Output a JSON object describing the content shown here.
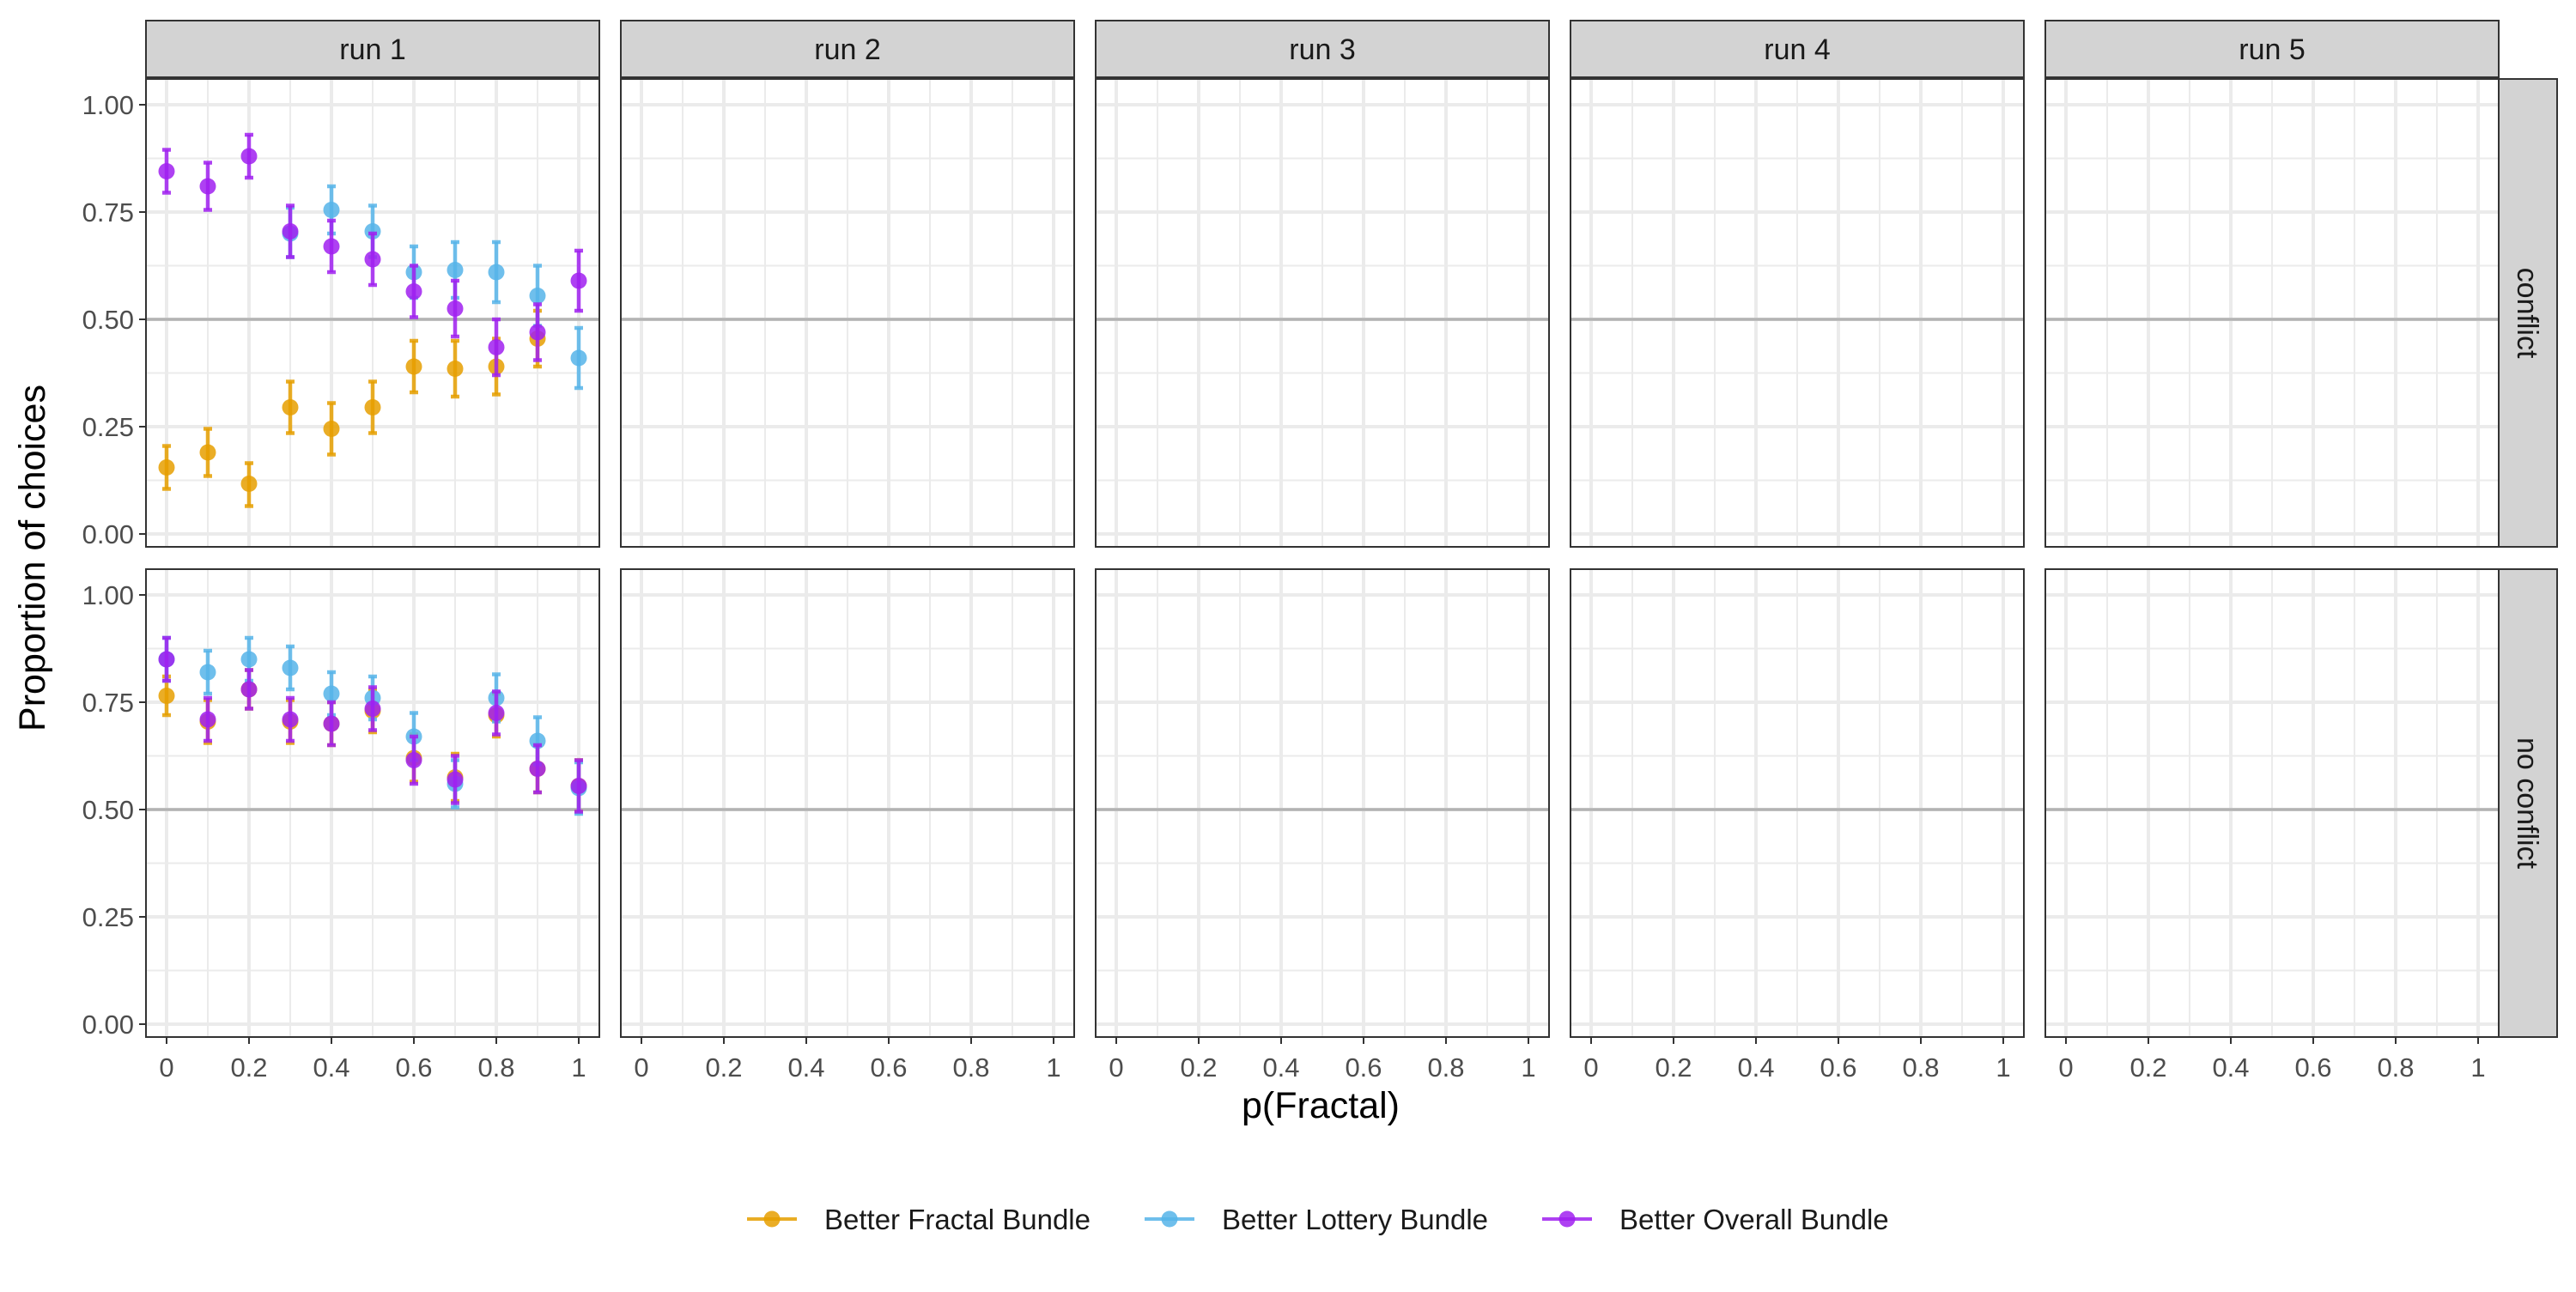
{
  "chart_data": {
    "type": "scatter",
    "style": "faceted points with error bars",
    "facet_columns": [
      "run 1",
      "run 2",
      "run 3",
      "run 4",
      "run 5"
    ],
    "facet_rows": [
      "conflict",
      "no conflict"
    ],
    "xlabel": "p(Fractal)",
    "ylabel": "Proportion of choices",
    "x_ticks": [
      "0",
      "0.2",
      "0.4",
      "0.6",
      "0.8",
      "1"
    ],
    "y_ticks": [
      "0.00",
      "0.25",
      "0.50",
      "0.75",
      "1.00"
    ],
    "xlim": [
      -0.05,
      1.05
    ],
    "ylim": [
      -0.03,
      1.06
    ],
    "reference_line": 0.5,
    "grid": true,
    "legend_position": "bottom",
    "colors": {
      "Better Fractal Bundle": "#E69F00",
      "Better Lottery Bundle": "#56B4E9",
      "Better Overall Bundle": "#A020F0",
      "panel_background": "#FFFFFF",
      "strip_background": "#D3D3D3",
      "grid": "#EBEBEB",
      "reference_line": "#B3B3B3"
    },
    "legend": [
      "Better Fractal Bundle",
      "Better Lottery Bundle",
      "Better Overall Bundle"
    ],
    "panels": [
      {
        "run": "run 1",
        "condition": "conflict",
        "series": [
          {
            "name": "Better Fractal Bundle",
            "x": [
              0,
              0.1,
              0.2,
              0.3,
              0.4,
              0.5,
              0.6,
              0.7,
              0.8,
              0.9
            ],
            "y": [
              0.155,
              0.19,
              0.117,
              0.295,
              0.245,
              0.295,
              0.39,
              0.385,
              0.39,
              0.455
            ],
            "err_low": [
              0.105,
              0.135,
              0.065,
              0.235,
              0.185,
              0.235,
              0.33,
              0.32,
              0.325,
              0.39
            ],
            "err_high": [
              0.205,
              0.245,
              0.165,
              0.355,
              0.305,
              0.355,
              0.45,
              0.45,
              0.455,
              0.52
            ]
          },
          {
            "name": "Better Lottery Bundle",
            "x": [
              0.3,
              0.4,
              0.5,
              0.6,
              0.7,
              0.8,
              0.9,
              1
            ],
            "y": [
              0.7,
              0.755,
              0.705,
              0.61,
              0.615,
              0.61,
              0.555,
              0.41
            ],
            "err_low": [
              0.645,
              0.7,
              0.645,
              0.55,
              0.55,
              0.54,
              0.485,
              0.34
            ],
            "err_high": [
              0.76,
              0.81,
              0.765,
              0.67,
              0.68,
              0.68,
              0.625,
              0.48
            ]
          },
          {
            "name": "Better Overall Bundle",
            "x": [
              0,
              0.1,
              0.2,
              0.3,
              0.4,
              0.5,
              0.6,
              0.7,
              0.8,
              0.9,
              1
            ],
            "y": [
              0.845,
              0.81,
              0.88,
              0.705,
              0.67,
              0.64,
              0.565,
              0.525,
              0.435,
              0.47,
              0.59
            ],
            "err_low": [
              0.795,
              0.755,
              0.83,
              0.645,
              0.61,
              0.58,
              0.505,
              0.46,
              0.37,
              0.405,
              0.52
            ],
            "err_high": [
              0.895,
              0.865,
              0.93,
              0.765,
              0.73,
              0.7,
              0.625,
              0.59,
              0.5,
              0.535,
              0.66
            ]
          }
        ]
      },
      {
        "run": "run 1",
        "condition": "no conflict",
        "series": [
          {
            "name": "Better Fractal Bundle",
            "x": [
              0,
              0.1,
              0.2,
              0.3,
              0.4,
              0.5,
              0.6,
              0.7,
              0.8,
              0.9,
              1
            ],
            "y": [
              0.765,
              0.705,
              0.78,
              0.705,
              0.7,
              0.73,
              0.62,
              0.575,
              0.72,
              0.595,
              0.555
            ],
            "err_low": [
              0.72,
              0.655,
              0.735,
              0.655,
              0.65,
              0.68,
              0.565,
              0.52,
              0.67,
              0.54,
              0.495
            ],
            "err_high": [
              0.81,
              0.755,
              0.825,
              0.755,
              0.75,
              0.78,
              0.675,
              0.63,
              0.77,
              0.65,
              0.615
            ]
          },
          {
            "name": "Better Lottery Bundle",
            "x": [
              0,
              0.1,
              0.2,
              0.3,
              0.4,
              0.5,
              0.6,
              0.7,
              0.8,
              0.9,
              1
            ],
            "y": [
              0.85,
              0.82,
              0.85,
              0.83,
              0.77,
              0.76,
              0.67,
              0.56,
              0.76,
              0.66,
              0.55
            ],
            "err_low": [
              0.8,
              0.77,
              0.8,
              0.78,
              0.72,
              0.71,
              0.615,
              0.505,
              0.705,
              0.605,
              0.49
            ],
            "err_high": [
              0.9,
              0.87,
              0.9,
              0.88,
              0.82,
              0.81,
              0.725,
              0.615,
              0.815,
              0.715,
              0.61
            ]
          },
          {
            "name": "Better Overall Bundle",
            "x": [
              0,
              0.1,
              0.2,
              0.3,
              0.4,
              0.5,
              0.6,
              0.7,
              0.8,
              0.9,
              1
            ],
            "y": [
              0.85,
              0.71,
              0.78,
              0.71,
              0.7,
              0.735,
              0.615,
              0.57,
              0.725,
              0.595,
              0.555
            ],
            "err_low": [
              0.8,
              0.66,
              0.735,
              0.66,
              0.65,
              0.685,
              0.56,
              0.515,
              0.675,
              0.54,
              0.495
            ],
            "err_high": [
              0.9,
              0.76,
              0.825,
              0.76,
              0.75,
              0.785,
              0.67,
              0.625,
              0.775,
              0.65,
              0.615
            ]
          }
        ]
      }
    ]
  }
}
